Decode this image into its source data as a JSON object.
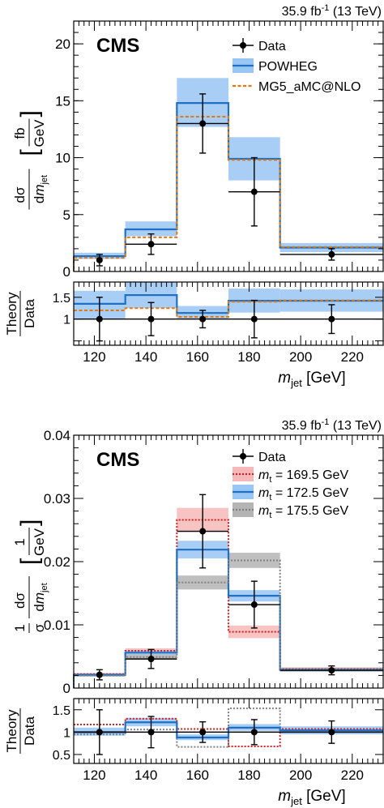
{
  "chart_data": [
    {
      "type": "line",
      "lumi_label": "35.9 fb",
      "lumi_sup": "-1",
      "energy_label": "(13 TeV)",
      "logo": "CMS",
      "xlabel": "m_jet [GeV]",
      "xlabel_var": "m",
      "xlabel_sub": "jet",
      "xlabel_unit": "[GeV]",
      "xlim": [
        112,
        232
      ],
      "xticks": [
        120,
        140,
        160,
        180,
        200,
        220
      ],
      "ylabel": "dσ/dm_jet [fb/GeV]",
      "ylim": [
        0,
        22
      ],
      "yticks": [
        0,
        5,
        10,
        15,
        20
      ],
      "bin_edges": [
        112,
        132,
        152,
        172,
        192,
        232
      ],
      "legend_position": "top-right",
      "data": {
        "name": "Data",
        "x": [
          122,
          142,
          162,
          182,
          212
        ],
        "y": [
          1.0,
          2.4,
          13.0,
          7.0,
          1.5
        ],
        "err_low": [
          0.5,
          0.9,
          2.6,
          3.0,
          0.5
        ],
        "err_high": [
          0.5,
          0.9,
          2.6,
          3.0,
          0.5
        ],
        "xerr_display": [
          null,
          10,
          10,
          10,
          20
        ]
      },
      "series": [
        {
          "name": "POWHEG",
          "values": [
            1.35,
            3.7,
            14.8,
            9.9,
            2.1
          ],
          "band_low": [
            1.1,
            3.1,
            12.7,
            8.0,
            1.7
          ],
          "band_high": [
            1.65,
            4.4,
            17.0,
            11.8,
            2.5
          ],
          "color": "#1f6fc5",
          "band_color": "#99c6f4",
          "style": "solid"
        },
        {
          "name": "MG5_aMC@NLO",
          "values": [
            1.2,
            3.0,
            13.6,
            9.8,
            2.15
          ],
          "color": "#e07a10",
          "style": "dashed"
        }
      ],
      "ratio": {
        "ylabel": "Theory/Data",
        "ylim": [
          0.4,
          1.85
        ],
        "yticks": [
          0.5,
          1,
          1.5
        ],
        "ytick_labels": [
          "",
          "1",
          "1.5"
        ],
        "data_err_low": [
          0.5,
          0.38,
          0.2,
          0.43,
          0.33
        ],
        "data_err_high": [
          0.5,
          0.38,
          0.2,
          0.43,
          0.33
        ],
        "powheg": [
          1.35,
          1.55,
          1.14,
          1.42,
          1.42
        ],
        "powheg_band_low": [
          1.0,
          1.25,
          1.0,
          1.15,
          1.17
        ],
        "powheg_band_high": [
          1.65,
          1.85,
          1.3,
          1.7,
          1.68
        ],
        "mg5": [
          1.2,
          1.25,
          1.05,
          1.4,
          1.43
        ]
      }
    },
    {
      "type": "line",
      "lumi_label": "35.9 fb",
      "lumi_sup": "-1",
      "energy_label": "(13 TeV)",
      "logo": "CMS",
      "xlabel": "m_jet [GeV]",
      "xlabel_var": "m",
      "xlabel_sub": "jet",
      "xlabel_unit": "[GeV]",
      "xlim": [
        112,
        232
      ],
      "xticks": [
        120,
        140,
        160,
        180,
        200,
        220
      ],
      "ylabel": "1/σ dσ/dm_jet [1/GeV]",
      "ylim": [
        0,
        0.04
      ],
      "yticks": [
        0,
        0.01,
        0.02,
        0.03,
        0.04
      ],
      "ytick_labels": [
        "0",
        "0.01",
        "0.02",
        "0.03",
        "0.04"
      ],
      "bin_edges": [
        112,
        132,
        152,
        172,
        192,
        232
      ],
      "legend_position": "top-right",
      "data": {
        "name": "Data",
        "x": [
          122,
          142,
          162,
          182,
          212
        ],
        "y": [
          0.0021,
          0.0046,
          0.0248,
          0.0132,
          0.0028
        ],
        "err_low": [
          0.0008,
          0.0015,
          0.0058,
          0.0037,
          0.0007
        ],
        "err_high": [
          0.0008,
          0.0015,
          0.0058,
          0.0037,
          0.0007
        ],
        "xerr_display": [
          null,
          10,
          10,
          10,
          20
        ]
      },
      "series": [
        {
          "name": "m_t = 169.5 GeV",
          "legend_var": "m",
          "legend_sub": "t",
          "legend_rest": " = 169.5 GeV",
          "values": [
            0.0022,
            0.0059,
            0.0266,
            0.0089,
            0.003
          ],
          "band_low": [
            0.002,
            0.0055,
            0.0247,
            0.0079,
            0.0027
          ],
          "band_high": [
            0.0024,
            0.0063,
            0.0285,
            0.0099,
            0.0033
          ],
          "color": "#d42020",
          "band_color": "#f6b8b8",
          "style": "dotted"
        },
        {
          "name": "m_t = 172.5 GeV",
          "legend_var": "m",
          "legend_sub": "t",
          "legend_rest": " = 172.5 GeV",
          "values": [
            0.0021,
            0.0056,
            0.0219,
            0.0146,
            0.0029
          ],
          "band_low": [
            0.0019,
            0.0052,
            0.0205,
            0.0137,
            0.0026
          ],
          "band_high": [
            0.0023,
            0.006,
            0.0233,
            0.0155,
            0.0032
          ],
          "color": "#1f6fc5",
          "band_color": "#99c6f4",
          "style": "solid"
        },
        {
          "name": "m_t = 175.5 GeV",
          "legend_var": "m",
          "legend_sub": "t",
          "legend_rest": " = 175.5 GeV",
          "values": [
            0.002,
            0.0049,
            0.0167,
            0.0202,
            0.0029
          ],
          "band_low": [
            0.0018,
            0.0045,
            0.0156,
            0.019,
            0.0026
          ],
          "band_high": [
            0.0022,
            0.0053,
            0.0178,
            0.0214,
            0.0032
          ],
          "color": "#808080",
          "band_color": "#b4b4b4",
          "style": "dotted"
        }
      ],
      "ratio": {
        "ylabel": "Theory/Data",
        "ylim": [
          0.3,
          1.75
        ],
        "yticks": [
          0.5,
          1,
          1.5
        ],
        "ytick_labels": [
          "0.5",
          "1",
          "1.5"
        ],
        "data_err_low": [
          0.5,
          0.35,
          0.23,
          0.28,
          0.25
        ],
        "data_err_high": [
          0.5,
          0.35,
          0.23,
          0.28,
          0.25
        ],
        "m1695": [
          1.17,
          1.3,
          1.07,
          0.68,
          1.07
        ],
        "m1725": [
          1.0,
          1.22,
          0.88,
          1.1,
          1.04
        ],
        "m1725_band_low": [
          0.92,
          1.13,
          0.82,
          1.03,
          0.95
        ],
        "m1725_band_high": [
          1.1,
          1.32,
          0.95,
          1.18,
          1.13
        ],
        "m1755": [
          0.95,
          1.06,
          0.67,
          1.53,
          1.04
        ]
      }
    }
  ]
}
